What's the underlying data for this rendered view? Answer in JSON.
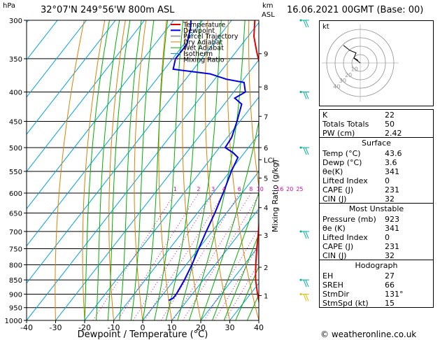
{
  "header": {
    "location": "32°07'N  249°56'W  800m  ASL",
    "datetime": "16.06.2021  00GMT  (Base: 00)",
    "hpa_label": "hPa",
    "km_label": "km",
    "asl_label": "ASL"
  },
  "chart_data": {
    "type": "line",
    "subtype": "skew-T log-p diagram",
    "xlabel": "Dewpoint / Temperature (°C)",
    "right_axis_label": "Mixing Ratio (g/kg)",
    "xlim": [
      -40,
      40
    ],
    "x_ticks": [
      "-40",
      "-30",
      "-20",
      "-10",
      "0",
      "10",
      "20",
      "30",
      "40"
    ],
    "pressure_levels": [
      "300",
      "350",
      "400",
      "450",
      "500",
      "550",
      "600",
      "650",
      "700",
      "750",
      "800",
      "850",
      "900",
      "950",
      "1000"
    ],
    "height_km_ticks": [
      {
        "label": "9",
        "p": 343
      },
      {
        "label": "8",
        "p": 392
      },
      {
        "label": "7",
        "p": 441
      },
      {
        "label": "6",
        "p": 500
      },
      {
        "label": "LCL",
        "p": 525
      },
      {
        "label": "5",
        "p": 565
      },
      {
        "label": "4",
        "p": 636
      },
      {
        "label": "3",
        "p": 710
      },
      {
        "label": "2",
        "p": 808
      },
      {
        "label": "1",
        "p": 905
      }
    ],
    "mixing_ratio_labels": [
      "1",
      "2",
      "3",
      "4",
      "6",
      "8",
      "10",
      "16",
      "20",
      "25"
    ],
    "legend": [
      "Temperature",
      "Dewpoint",
      "Parcel Trajectory",
      "Dry Adiabat",
      "Wet Adiabat",
      "Isotherm",
      "Mixing Ratio"
    ],
    "colors": {
      "temperature": "#e00000",
      "dewpoint": "#0000e0",
      "parcel": "#a0a0a0",
      "dry_adiabat": "#e08000",
      "wet_adiabat": "#00b000",
      "isotherm": "#00a0e0",
      "mixing_ratio": "#e000a0"
    },
    "temperature_profile": [
      [
        1000,
        41.5
      ],
      [
        950,
        37
      ],
      [
        900,
        32.5
      ],
      [
        850,
        28
      ],
      [
        800,
        24
      ],
      [
        750,
        20
      ],
      [
        700,
        16
      ],
      [
        650,
        11.5
      ],
      [
        600,
        7
      ],
      [
        550,
        1.5
      ],
      [
        500,
        -5
      ],
      [
        460,
        -11
      ],
      [
        430,
        -14
      ],
      [
        400,
        -17
      ],
      [
        380,
        -23
      ],
      [
        360,
        -28
      ],
      [
        340,
        -33
      ],
      [
        320,
        -38
      ],
      [
        300,
        -42
      ]
    ],
    "dewpoint_profile": [
      [
        923,
        3.6
      ],
      [
        915,
        4.5
      ],
      [
        900,
        4.5
      ],
      [
        850,
        3.5
      ],
      [
        800,
        2
      ],
      [
        750,
        0
      ],
      [
        700,
        -2
      ],
      [
        650,
        -4
      ],
      [
        600,
        -6.5
      ],
      [
        550,
        -9.5
      ],
      [
        520,
        -11
      ],
      [
        510,
        -14
      ],
      [
        500,
        -18
      ],
      [
        480,
        -18.5
      ],
      [
        450,
        -21
      ],
      [
        420,
        -24
      ],
      [
        410,
        -28
      ],
      [
        400,
        -26
      ],
      [
        385,
        -29
      ],
      [
        380,
        -36
      ],
      [
        372,
        -43
      ],
      [
        365,
        -57
      ],
      [
        350,
        -59
      ],
      [
        330,
        -59
      ],
      [
        310,
        -62
      ],
      [
        300,
        -64
      ]
    ],
    "parcel_profile": [
      [
        1000,
        43
      ],
      [
        950,
        38.5
      ],
      [
        900,
        34
      ],
      [
        850,
        29.5
      ],
      [
        800,
        25
      ],
      [
        750,
        20.5
      ],
      [
        700,
        16
      ],
      [
        650,
        11
      ],
      [
        600,
        6
      ],
      [
        550,
        0.5
      ],
      [
        525,
        -2
      ],
      [
        500,
        -6
      ],
      [
        450,
        -12
      ],
      [
        400,
        -18
      ],
      [
        350,
        -26
      ],
      [
        300,
        -34
      ]
    ],
    "hodograph": {
      "label": "kt",
      "ring_labels": [
        "10",
        "20",
        "30",
        "40"
      ],
      "points": [
        [
          5,
          5
        ],
        [
          15,
          10
        ],
        [
          10,
          20
        ],
        [
          25,
          25
        ],
        [
          40,
          35
        ]
      ],
      "storm_motion": [
        -8,
        6
      ]
    },
    "wind_barbs": [
      {
        "p": 300,
        "color": "#00b0a0"
      },
      {
        "p": 400,
        "color": "#00b0a0"
      },
      {
        "p": 500,
        "color": "#00b0a0"
      },
      {
        "p": 700,
        "color": "#00b0a0"
      },
      {
        "p": 850,
        "color": "#00b0a0"
      },
      {
        "p": 900,
        "color": "#e0c000"
      }
    ]
  },
  "indices": [
    {
      "label": "K",
      "value": "22"
    },
    {
      "label": "Totals Totals",
      "value": "50"
    },
    {
      "label": "PW (cm)",
      "value": "2.42"
    }
  ],
  "surface": {
    "title": "Surface",
    "rows": [
      {
        "label": "Temp (°C)",
        "value": "43.6"
      },
      {
        "label": "Dewp (°C)",
        "value": "3.6"
      },
      {
        "label": "θe(K)",
        "value": "341"
      },
      {
        "label": "Lifted Index",
        "value": "0"
      },
      {
        "label": "CAPE (J)",
        "value": "231"
      },
      {
        "label": "CIN (J)",
        "value": "32"
      }
    ]
  },
  "most_unstable": {
    "title": "Most Unstable",
    "rows": [
      {
        "label": "Pressure (mb)",
        "value": "923"
      },
      {
        "label": "θe (K)",
        "value": "341"
      },
      {
        "label": "Lifted Index",
        "value": "0"
      },
      {
        "label": "CAPE (J)",
        "value": "231"
      },
      {
        "label": "CIN (J)",
        "value": "32"
      }
    ]
  },
  "hodograph_table": {
    "title": "Hodograph",
    "rows": [
      {
        "label": "EH",
        "value": "27"
      },
      {
        "label": "SREH",
        "value": "66"
      },
      {
        "label": "StmDir",
        "value": "131°"
      },
      {
        "label": "StmSpd (kt)",
        "value": "15"
      }
    ]
  },
  "footer": {
    "copyright": "© weatheronline.co.uk"
  }
}
